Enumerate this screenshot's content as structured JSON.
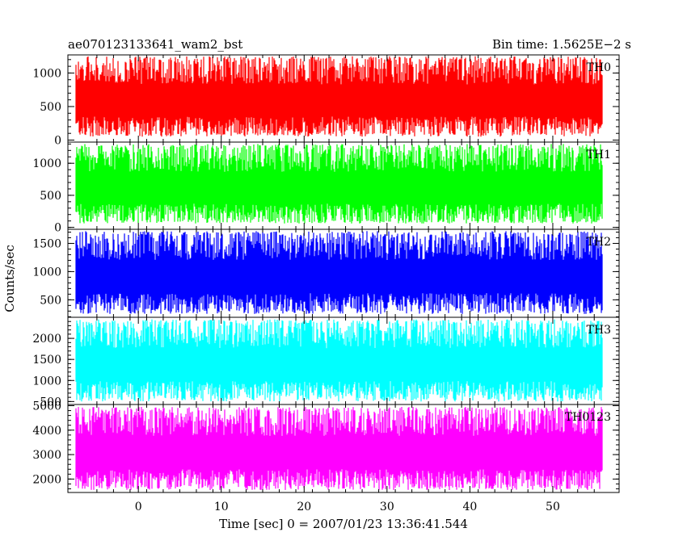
{
  "header": {
    "title": "ae070123133641_wam2_bst",
    "bin_time": "Bin time: 1.5625E−2 s"
  },
  "chart_data": {
    "type": "line",
    "title": "ae070123133641_wam2_bst",
    "subtitle": "Bin time: 1.5625E−2 s",
    "xlabel": "Time [sec] 0 = 2007/01/23 13:36:41.544",
    "ylabel": "Counts/sec",
    "xlim": [
      -8.5,
      58
    ],
    "x_ticks": [
      0,
      10,
      20,
      30,
      40,
      50
    ],
    "x_tick_labels": [
      "0",
      "10",
      "20",
      "30",
      "40",
      "50"
    ],
    "data_x_range": [
      -7.5,
      56
    ],
    "bin_time": 0.015625,
    "grid": false,
    "panels": [
      {
        "series_name": "TH0",
        "color": "#ff0000",
        "ylim": [
          -30,
          1270
        ],
        "y_ticks": [
          0,
          500,
          1000
        ],
        "y_tick_labels": [
          "0",
          "500",
          "1000"
        ],
        "level_mean": 600,
        "fluct_low": 50,
        "fluct_high": 1250
      },
      {
        "series_name": "TH1",
        "color": "#00ff00",
        "ylim": [
          -30,
          1330
        ],
        "y_ticks": [
          0,
          500,
          1000
        ],
        "y_tick_labels": [
          "0",
          "500",
          "1000"
        ],
        "level_mean": 650,
        "fluct_low": 60,
        "fluct_high": 1300
      },
      {
        "series_name": "TH2",
        "color": "#0000ff",
        "ylim": [
          190,
          1750
        ],
        "y_ticks": [
          500,
          1000,
          1500
        ],
        "y_tick_labels": [
          "500",
          "1000",
          "1500"
        ],
        "level_mean": 900,
        "fluct_low": 250,
        "fluct_high": 1720
      },
      {
        "series_name": "TH3",
        "color": "#00ffff",
        "ylim": [
          430,
          2500
        ],
        "y_ticks": [
          500,
          1000,
          1500,
          2000
        ],
        "y_tick_labels": [
          "500",
          "1000",
          "1500",
          "2000"
        ],
        "level_mean": 1300,
        "fluct_low": 500,
        "fluct_high": 2450
      },
      {
        "series_name": "TH0123",
        "color": "#ff00ff",
        "ylim": [
          1450,
          5050
        ],
        "y_ticks": [
          2000,
          3000,
          4000,
          5000
        ],
        "y_tick_labels": [
          "2000",
          "3000",
          "4000",
          "5000"
        ],
        "level_mean": 3100,
        "fluct_low": 1550,
        "fluct_high": 4950
      }
    ]
  }
}
